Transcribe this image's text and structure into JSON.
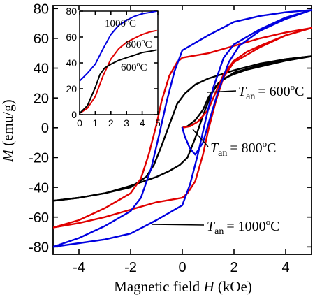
{
  "chart_data": [
    {
      "type": "line",
      "name": "main",
      "xlabel_text": "Magnetic field",
      "xlabel_var": "H",
      "xlabel_unit": "(kOe)",
      "ylabel_var": "M",
      "ylabel_unit": "(emu/g)",
      "xlim": [
        -5,
        5
      ],
      "ylim": [
        -85,
        82
      ],
      "xticks": [
        -4,
        -2,
        0,
        2,
        4
      ],
      "yticks": [
        -80,
        -60,
        -40,
        -20,
        0,
        20,
        40,
        60,
        80
      ],
      "grid": false,
      "colors": {
        "600": "#000000",
        "800": "#e00000",
        "1000": "#0000e0"
      },
      "annotations": [
        {
          "label_var": "T",
          "label_sub": "an",
          "text": "= 600",
          "unit": "C",
          "sup": "o",
          "series": "600"
        },
        {
          "label_var": "T",
          "label_sub": "an",
          "text": "= 800",
          "unit": "C",
          "sup": "o",
          "series": "800"
        },
        {
          "label_var": "T",
          "label_sub": "an",
          "text": "= 1000",
          "unit": "C",
          "sup": "o",
          "series": "1000"
        }
      ],
      "series": [
        {
          "key": "600",
          "virgin": [
            [
              0,
              0
            ],
            [
              0.2,
              1
            ],
            [
              0.5,
              5
            ],
            [
              0.8,
              12
            ],
            [
              1.0,
              20
            ],
            [
              1.3,
              28
            ],
            [
              1.6,
              33
            ],
            [
              2.0,
              36
            ],
            [
              2.5,
              39
            ],
            [
              3,
              41
            ],
            [
              4,
              45
            ],
            [
              5,
              48
            ]
          ],
          "upper": [
            [
              5,
              48
            ],
            [
              4,
              46
            ],
            [
              3,
              43
            ],
            [
              2,
              38.5
            ],
            [
              1,
              33
            ],
            [
              0.5,
              29
            ],
            [
              0.1,
              23
            ],
            [
              -0.2,
              16
            ],
            [
              -0.5,
              2
            ],
            [
              -0.8,
              -12
            ],
            [
              -1.1,
              -25
            ],
            [
              -1.4,
              -33
            ],
            [
              -2,
              -40
            ],
            [
              -3,
              -44
            ],
            [
              -4,
              -47
            ],
            [
              -5,
              -49
            ]
          ],
          "lower": [
            [
              -5,
              -49
            ],
            [
              -4,
              -47
            ],
            [
              -3,
              -44
            ],
            [
              -2,
              -39
            ],
            [
              -1,
              -33
            ],
            [
              -0.5,
              -29
            ],
            [
              -0.1,
              -25
            ],
            [
              0.2,
              -20
            ],
            [
              0.5,
              -7
            ],
            [
              0.8,
              8
            ],
            [
              1.1,
              22
            ],
            [
              1.4,
              30
            ],
            [
              2,
              37
            ],
            [
              3,
              42
            ],
            [
              4,
              46
            ],
            [
              5,
              48
            ]
          ]
        },
        {
          "key": "800",
          "virgin": [
            [
              0,
              0
            ],
            [
              0.3,
              1
            ],
            [
              0.6,
              4
            ],
            [
              1.0,
              12
            ],
            [
              1.3,
              24
            ],
            [
              1.6,
              36
            ],
            [
              2.0,
              45
            ],
            [
              2.5,
              51
            ],
            [
              3,
              55
            ],
            [
              4,
              62
            ],
            [
              5,
              67
            ]
          ],
          "upper": [
            [
              5,
              67
            ],
            [
              4,
              64
            ],
            [
              3,
              60
            ],
            [
              2,
              55
            ],
            [
              1,
              50
            ],
            [
              0,
              47
            ],
            [
              -0.2,
              44
            ],
            [
              -0.5,
              35
            ],
            [
              -0.8,
              18
            ],
            [
              -1.0,
              2
            ],
            [
              -1.3,
              -18
            ],
            [
              -1.6,
              -34
            ],
            [
              -2,
              -44
            ],
            [
              -3,
              -54
            ],
            [
              -4,
              -62
            ],
            [
              -5,
              -67
            ]
          ],
          "lower": [
            [
              -5,
              -67
            ],
            [
              -4,
              -64
            ],
            [
              -3,
              -60
            ],
            [
              -2,
              -55
            ],
            [
              -1,
              -50
            ],
            [
              0,
              -47
            ],
            [
              0.2,
              -44
            ],
            [
              0.5,
              -36
            ],
            [
              0.8,
              -18
            ],
            [
              1.0,
              -2
            ],
            [
              1.3,
              18
            ],
            [
              1.6,
              34
            ],
            [
              2,
              44
            ],
            [
              3,
              54
            ],
            [
              4,
              62
            ],
            [
              5,
              67
            ]
          ]
        },
        {
          "key": "1000",
          "virgin": [
            [
              0,
              0
            ],
            [
              0.1,
              -6
            ],
            [
              0.3,
              -14
            ],
            [
              0.5,
              -18
            ],
            [
              0.8,
              -10
            ],
            [
              1.1,
              8
            ],
            [
              1.4,
              25
            ],
            [
              1.8,
              44
            ],
            [
              2.2,
              55
            ],
            [
              3,
              65
            ],
            [
              4,
              73
            ],
            [
              5,
              79
            ]
          ],
          "upper": [
            [
              5,
              79
            ],
            [
              4,
              77.5
            ],
            [
              3,
              75
            ],
            [
              2,
              71
            ],
            [
              1,
              62
            ],
            [
              0,
              52
            ],
            [
              -0.3,
              38
            ],
            [
              -0.6,
              18
            ],
            [
              -0.9,
              -5
            ],
            [
              -1.2,
              -27
            ],
            [
              -1.6,
              -47
            ],
            [
              -2,
              -56
            ],
            [
              -3,
              -66
            ],
            [
              -4,
              -74
            ],
            [
              -5,
              -80
            ]
          ],
          "lower": [
            [
              -5,
              -80
            ],
            [
              -4,
              -77.5
            ],
            [
              -3,
              -75
            ],
            [
              -2,
              -71
            ],
            [
              -1,
              -62
            ],
            [
              0,
              -52
            ],
            [
              0.3,
              -38
            ],
            [
              0.6,
              -18
            ],
            [
              0.9,
              5
            ],
            [
              1.2,
              27
            ],
            [
              1.6,
              47
            ],
            [
              2,
              56
            ],
            [
              3,
              66
            ],
            [
              4,
              74
            ],
            [
              5,
              79
            ]
          ]
        }
      ]
    },
    {
      "type": "line",
      "name": "inset",
      "xlim": [
        0,
        5
      ],
      "ylim": [
        0,
        80
      ],
      "xticks": [
        0,
        1,
        2,
        3,
        4,
        5
      ],
      "yticks": [
        0,
        20,
        40,
        60,
        80
      ],
      "grid": false,
      "labels": [
        {
          "text": "1000",
          "sup": "o",
          "unit": "C",
          "series": "1000"
        },
        {
          "text": "800",
          "sup": "o",
          "unit": "C",
          "series": "800"
        },
        {
          "text": "600",
          "sup": "o",
          "unit": "C",
          "series": "600"
        }
      ],
      "series": [
        {
          "key": "1000",
          "points": [
            [
              0,
              26
            ],
            [
              0.5,
              32
            ],
            [
              1,
              39
            ],
            [
              1.5,
              51
            ],
            [
              2,
              62
            ],
            [
              2.5,
              69
            ],
            [
              3,
              73
            ],
            [
              3.5,
              76
            ],
            [
              4,
              78
            ],
            [
              4.5,
              79
            ],
            [
              4.9,
              80
            ]
          ]
        },
        {
          "key": "800",
          "points": [
            [
              0,
              1
            ],
            [
              0.5,
              5
            ],
            [
              1,
              14
            ],
            [
              1.5,
              30
            ],
            [
              2,
              43
            ],
            [
              2.5,
              51
            ],
            [
              3,
              56
            ],
            [
              3.5,
              59
            ],
            [
              4,
              62
            ],
            [
              4.5,
              64
            ],
            [
              4.9,
              65
            ]
          ]
        },
        {
          "key": "600",
          "points": [
            [
              0,
              1
            ],
            [
              0.5,
              7
            ],
            [
              1,
              21
            ],
            [
              1.3,
              31
            ],
            [
              1.6,
              36
            ],
            [
              2,
              39
            ],
            [
              2.5,
              42
            ],
            [
              3,
              44
            ],
            [
              3.5,
              46
            ],
            [
              4,
              48
            ],
            [
              4.5,
              49
            ],
            [
              4.9,
              50
            ]
          ]
        }
      ]
    }
  ]
}
